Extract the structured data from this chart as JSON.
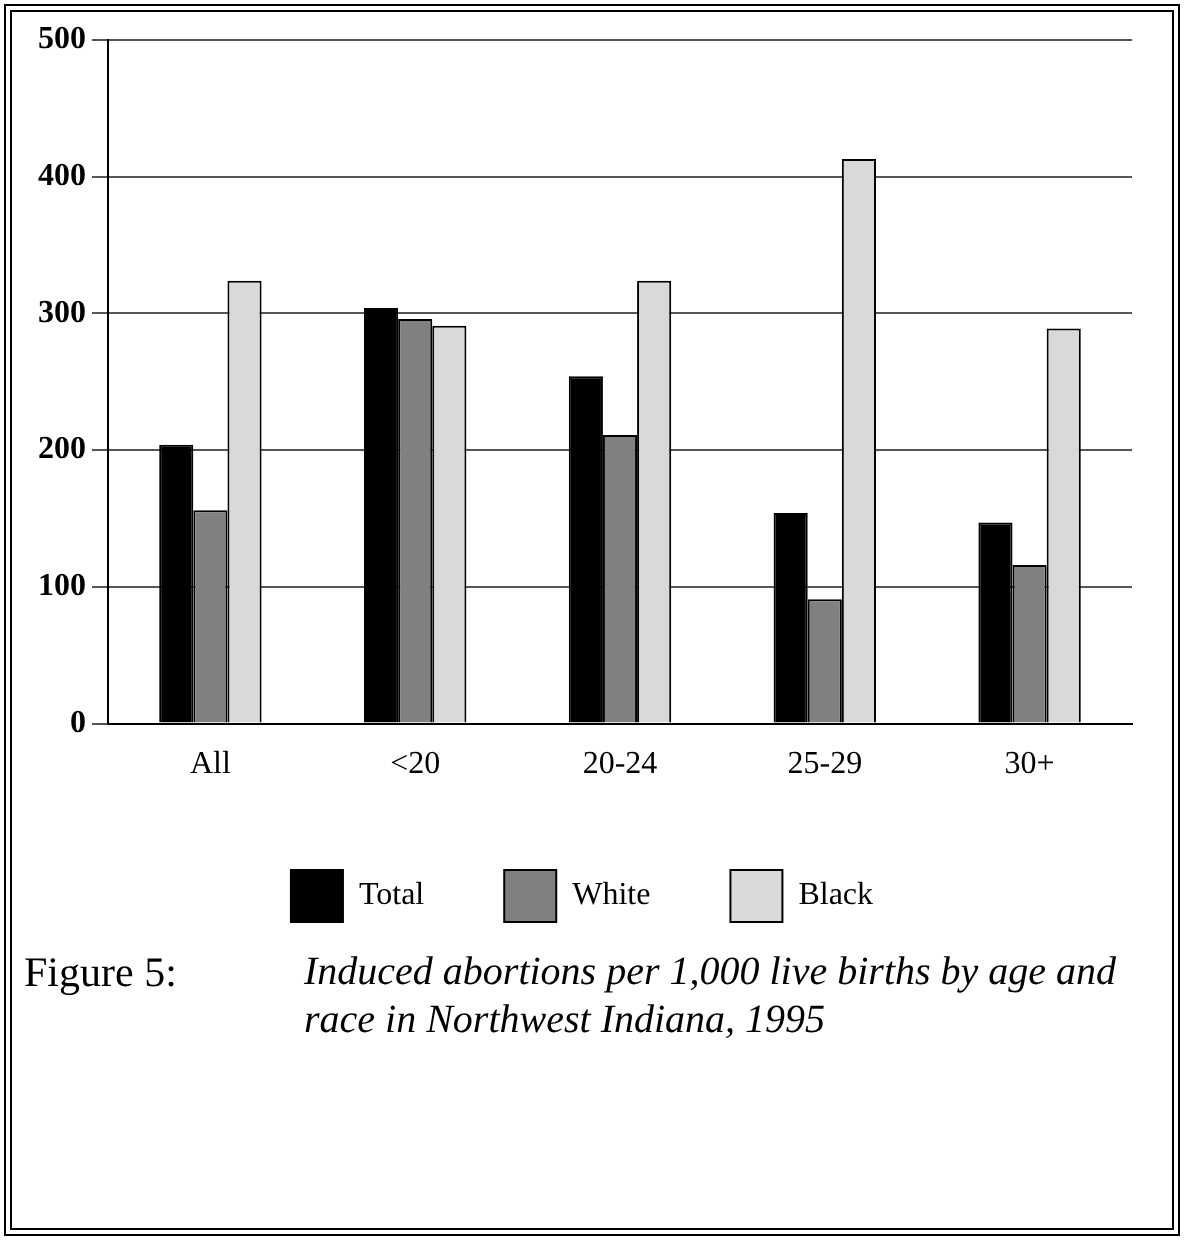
{
  "chart_data": {
    "type": "bar",
    "title": "Figure 5:",
    "subtitle": "Induced abortions per 1,000 live births by age and race in Northwest Indiana, 1995",
    "categories": [
      "All",
      "<20",
      "20-24",
      "25-29",
      "30+"
    ],
    "series": [
      {
        "name": "Total",
        "color": "#000000",
        "values": [
          204,
          304,
          254,
          154,
          147
        ]
      },
      {
        "name": "White",
        "color": "#808080",
        "values": [
          156,
          296,
          211,
          91,
          116
        ]
      },
      {
        "name": "Black",
        "color": "#d9d9d9",
        "values": [
          324,
          291,
          324,
          413,
          289
        ]
      }
    ],
    "ylim": [
      0,
      500
    ],
    "yticks": [
      0,
      100,
      200,
      300,
      400,
      500
    ],
    "grid": "y",
    "legend": "bottom"
  }
}
